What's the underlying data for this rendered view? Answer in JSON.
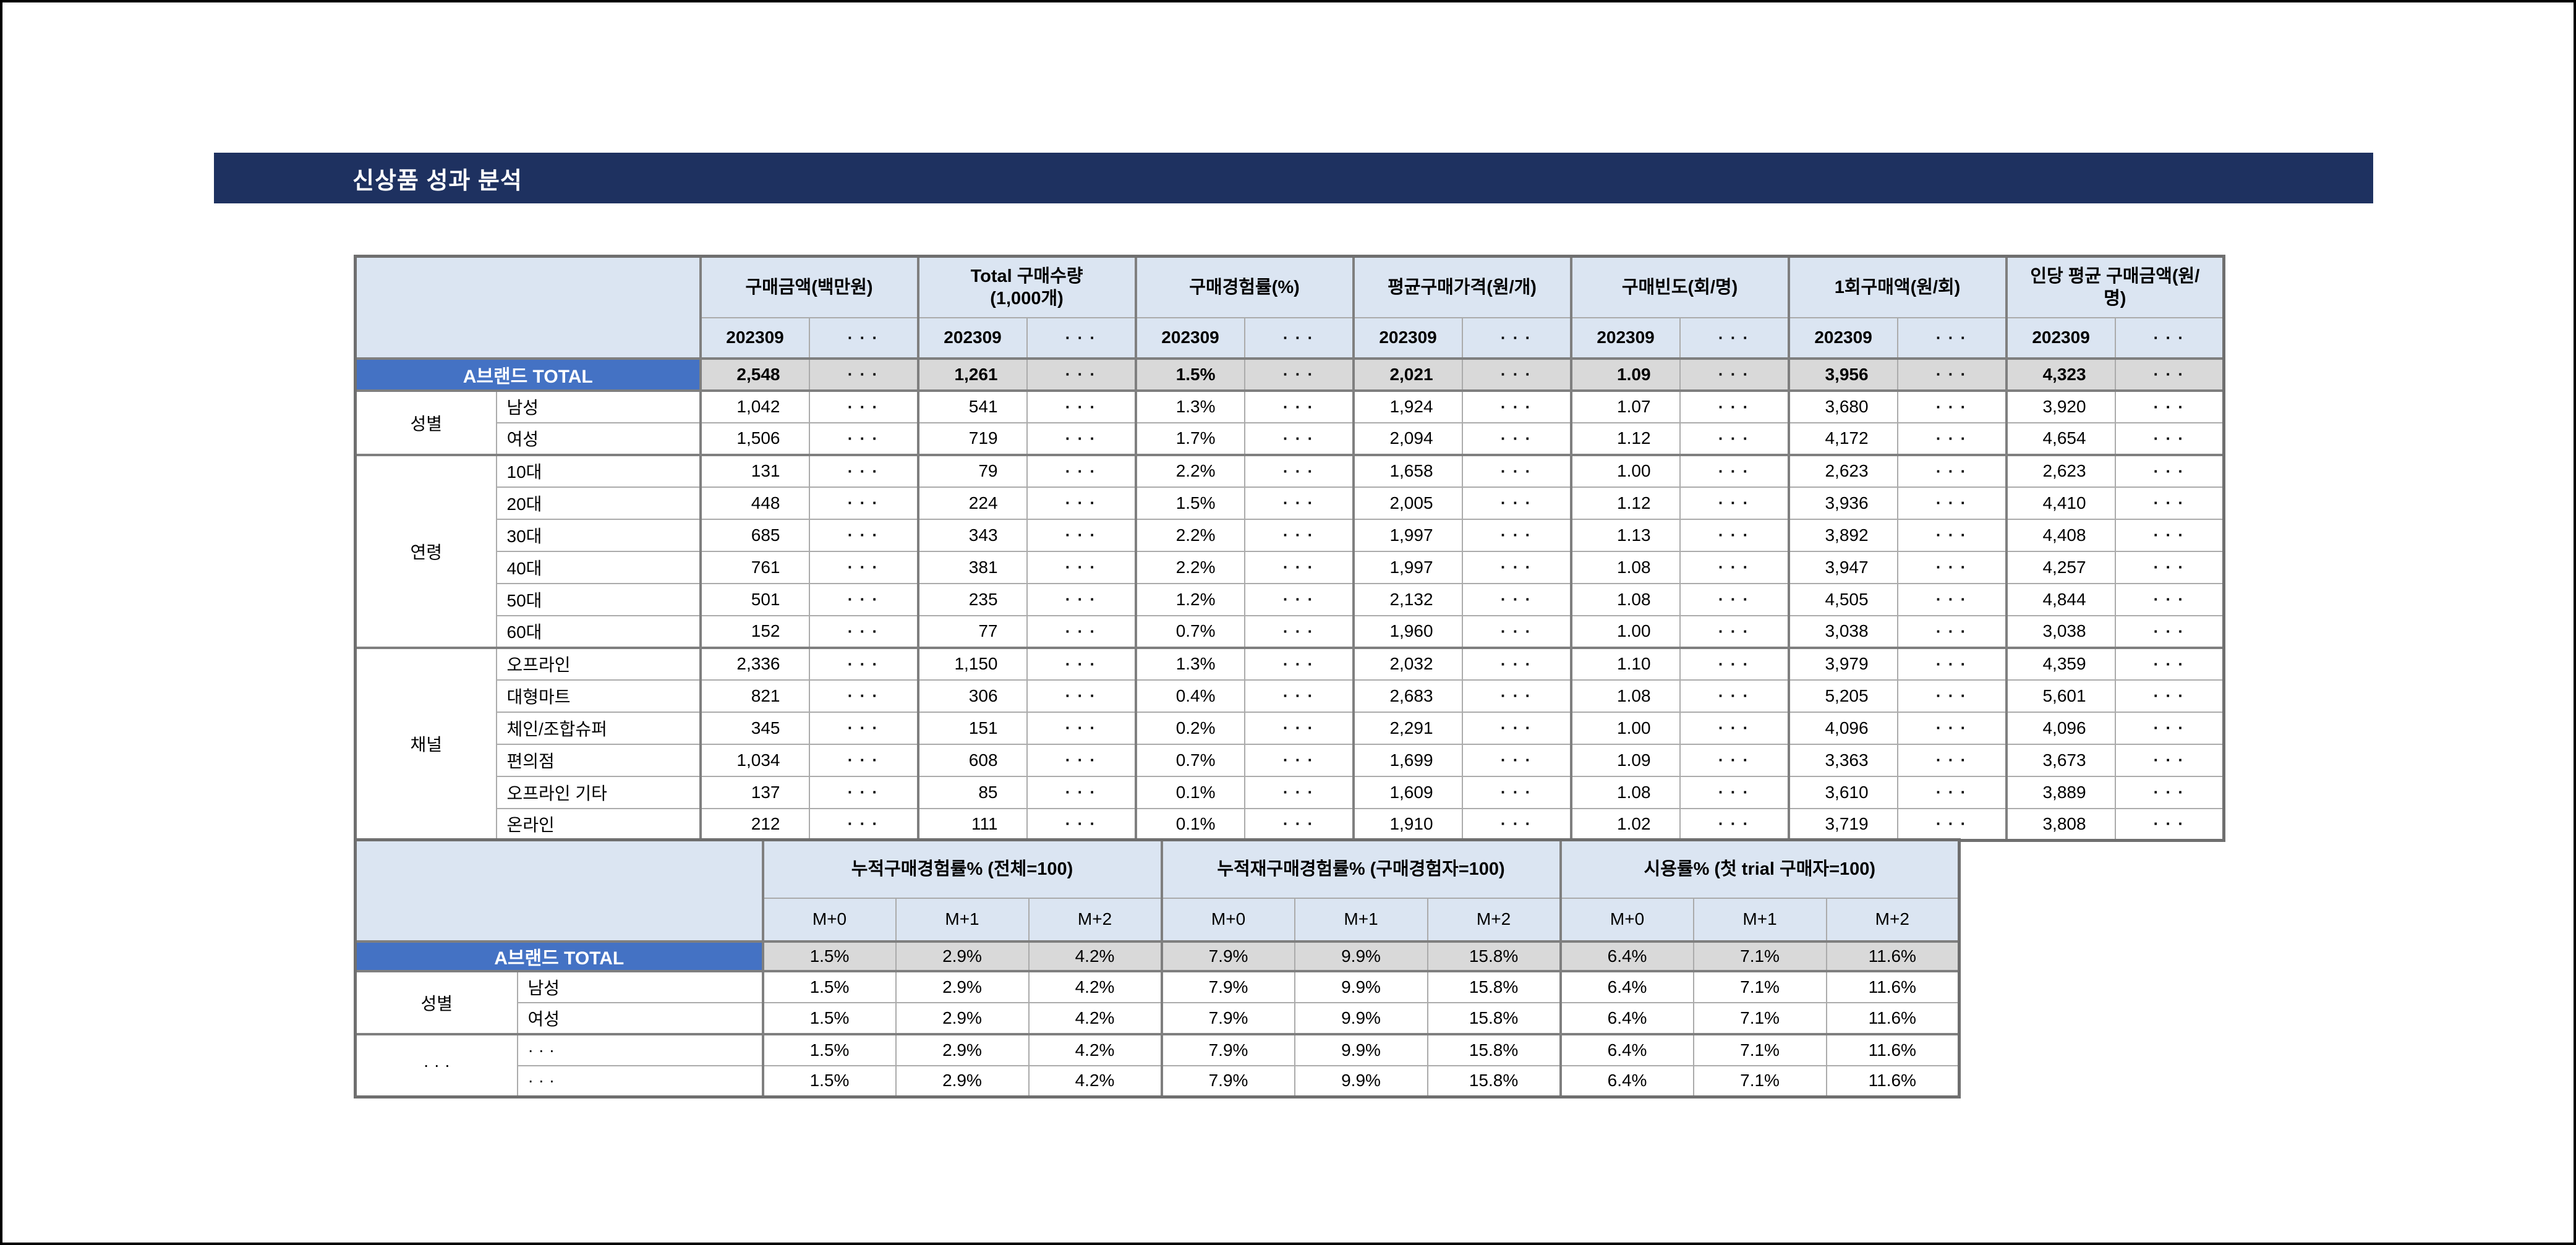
{
  "page": {
    "title": "신상품 성과 분석"
  },
  "ellipsis": "· · ·",
  "colors": {
    "banner_bg": "#1e3160",
    "header_bg": "#dbe5f2",
    "accent": "#4472c4",
    "total_bg": "#d9d9d9"
  },
  "table1": {
    "metric_groups": [
      "구매금액(백만원)",
      "Total 구매수량\n(1,000개)",
      "구매경험률(%)",
      "평균구매가격(원/개)",
      "구매빈도(회/명)",
      "1회구매액(원/회)",
      "인당 평균 구매금액(원/\n명)"
    ],
    "period_label": "202309",
    "total_row": {
      "label": "A브랜드 TOTAL",
      "values": [
        "2,548",
        "1,261",
        "1.5%",
        "2,021",
        "1.09",
        "3,956",
        "4,323"
      ]
    },
    "groups": [
      {
        "category": "성별",
        "rows": [
          {
            "label": "남성",
            "values": [
              "1,042",
              "541",
              "1.3%",
              "1,924",
              "1.07",
              "3,680",
              "3,920"
            ]
          },
          {
            "label": "여성",
            "values": [
              "1,506",
              "719",
              "1.7%",
              "2,094",
              "1.12",
              "4,172",
              "4,654"
            ]
          }
        ]
      },
      {
        "category": "연령",
        "rows": [
          {
            "label": "10대",
            "values": [
              "131",
              "79",
              "2.2%",
              "1,658",
              "1.00",
              "2,623",
              "2,623"
            ]
          },
          {
            "label": "20대",
            "values": [
              "448",
              "224",
              "1.5%",
              "2,005",
              "1.12",
              "3,936",
              "4,410"
            ]
          },
          {
            "label": "30대",
            "values": [
              "685",
              "343",
              "2.2%",
              "1,997",
              "1.13",
              "3,892",
              "4,408"
            ]
          },
          {
            "label": "40대",
            "values": [
              "761",
              "381",
              "2.2%",
              "1,997",
              "1.08",
              "3,947",
              "4,257"
            ]
          },
          {
            "label": "50대",
            "values": [
              "501",
              "235",
              "1.2%",
              "2,132",
              "1.08",
              "4,505",
              "4,844"
            ]
          },
          {
            "label": "60대",
            "values": [
              "152",
              "77",
              "0.7%",
              "1,960",
              "1.00",
              "3,038",
              "3,038"
            ]
          }
        ]
      },
      {
        "category": "채널",
        "rows": [
          {
            "label": "오프라인",
            "values": [
              "2,336",
              "1,150",
              "1.3%",
              "2,032",
              "1.10",
              "3,979",
              "4,359"
            ]
          },
          {
            "label": "대형마트",
            "values": [
              "821",
              "306",
              "0.4%",
              "2,683",
              "1.08",
              "5,205",
              "5,601"
            ]
          },
          {
            "label": "체인/조합슈퍼",
            "values": [
              "345",
              "151",
              "0.2%",
              "2,291",
              "1.00",
              "4,096",
              "4,096"
            ]
          },
          {
            "label": "편의점",
            "values": [
              "1,034",
              "608",
              "0.7%",
              "1,699",
              "1.09",
              "3,363",
              "3,673"
            ]
          },
          {
            "label": "오프라인 기타",
            "values": [
              "137",
              "85",
              "0.1%",
              "1,609",
              "1.08",
              "3,610",
              "3,889"
            ]
          },
          {
            "label": "온라인",
            "values": [
              "212",
              "111",
              "0.1%",
              "1,910",
              "1.02",
              "3,719",
              "3,808"
            ]
          }
        ]
      }
    ]
  },
  "table2": {
    "metric_groups": [
      "누적구매경험률% (전체=100)",
      "누적재구매경험률% (구매경험자=100)",
      "시용률% (첫 trial 구매자=100)"
    ],
    "period_cols": [
      "M+0",
      "M+1",
      "M+2"
    ],
    "total_row": {
      "label": "A브랜드 TOTAL",
      "values": [
        "1.5%",
        "2.9%",
        "4.2%",
        "7.9%",
        "9.9%",
        "15.8%",
        "6.4%",
        "7.1%",
        "11.6%"
      ]
    },
    "groups": [
      {
        "category": "성별",
        "rows": [
          {
            "label": "남성",
            "values": [
              "1.5%",
              "2.9%",
              "4.2%",
              "7.9%",
              "9.9%",
              "15.8%",
              "6.4%",
              "7.1%",
              "11.6%"
            ]
          },
          {
            "label": "여성",
            "values": [
              "1.5%",
              "2.9%",
              "4.2%",
              "7.9%",
              "9.9%",
              "15.8%",
              "6.4%",
              "7.1%",
              "11.6%"
            ]
          }
        ]
      },
      {
        "category": "· · ·",
        "rows": [
          {
            "label": "· · ·",
            "values": [
              "1.5%",
              "2.9%",
              "4.2%",
              "7.9%",
              "9.9%",
              "15.8%",
              "6.4%",
              "7.1%",
              "11.6%"
            ]
          },
          {
            "label": "· · ·",
            "values": [
              "1.5%",
              "2.9%",
              "4.2%",
              "7.9%",
              "9.9%",
              "15.8%",
              "6.4%",
              "7.1%",
              "11.6%"
            ]
          }
        ]
      }
    ]
  }
}
